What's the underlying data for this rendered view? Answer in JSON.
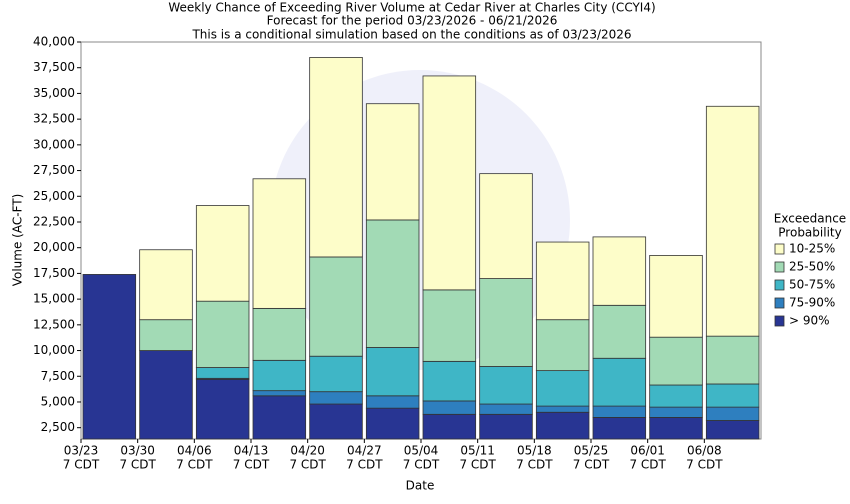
{
  "chart_data": {
    "type": "stacked_bar",
    "title": [
      "Weekly Chance of Exceeding River Volume at Cedar River at Charles City (CCYI4)",
      "Forecast for the period 03/23/2026 - 06/21/2026",
      "This is a conditional simulation based on the conditions as of 03/23/2026"
    ],
    "x_label": "Date",
    "y_label": "Volume (AC-FT)",
    "legend_title": [
      "Exceedance",
      "Probability"
    ],
    "categories": [
      "03/23",
      "03/30",
      "04/06",
      "04/13",
      "04/20",
      "04/27",
      "05/04",
      "05/11",
      "05/18",
      "05/25",
      "06/01",
      "06/08"
    ],
    "category_sublabels": [
      "7 CDT",
      "7 CDT",
      "7 CDT",
      "7 CDT",
      "7 CDT",
      "7 CDT",
      "7 CDT",
      "7 CDT",
      "7 CDT",
      "7 CDT",
      "7 CDT",
      "7 CDT"
    ],
    "series": [
      {
        "name": "> 90%",
        "color": "#283593",
        "values": [
          17400,
          10000,
          7200,
          5600,
          4800,
          4400,
          3800,
          3800,
          4000,
          3500,
          3500,
          3200
        ]
      },
      {
        "name": "75-90%",
        "color": "#2e7fbf",
        "values": [
          0,
          0,
          100,
          500,
          1200,
          1200,
          1300,
          1000,
          600,
          1100,
          1000,
          1300
        ]
      },
      {
        "name": "50-75%",
        "color": "#3fb6c6",
        "values": [
          0,
          0,
          1050,
          2950,
          3450,
          4700,
          3850,
          3650,
          3450,
          4650,
          2150,
          2250
        ]
      },
      {
        "name": "25-50%",
        "color": "#a2dab5",
        "values": [
          0,
          3000,
          6450,
          5050,
          9650,
          12400,
          6950,
          8550,
          4950,
          5150,
          4650,
          4650
        ]
      },
      {
        "name": "10-25%",
        "color": "#fdfdc9",
        "values": [
          0,
          6800,
          9300,
          12600,
          19400,
          11300,
          20800,
          10200,
          7550,
          6650,
          7950,
          22350
        ]
      }
    ],
    "ylim": [
      1400,
      40000
    ],
    "yticks": [
      {
        "value": 2500,
        "label": "2,500"
      },
      {
        "value": 5000,
        "label": "5,000"
      },
      {
        "value": 7500,
        "label": "7,500"
      },
      {
        "value": 10000,
        "label": "10,000"
      },
      {
        "value": 12500,
        "label": "12,500"
      },
      {
        "value": 15000,
        "label": "15,000"
      },
      {
        "value": 17500,
        "label": "17,500"
      },
      {
        "value": 20000,
        "label": "20,000"
      },
      {
        "value": 22500,
        "label": "22,500"
      },
      {
        "value": 25000,
        "label": "25,000"
      },
      {
        "value": 27500,
        "label": "27,500"
      },
      {
        "value": 30000,
        "label": "30,000"
      },
      {
        "value": 32500,
        "label": "32,500"
      },
      {
        "value": 35000,
        "label": "35,000"
      },
      {
        "value": 37500,
        "label": "37,500"
      },
      {
        "value": 40000,
        "label": "40,000"
      }
    ],
    "grid": false
  }
}
